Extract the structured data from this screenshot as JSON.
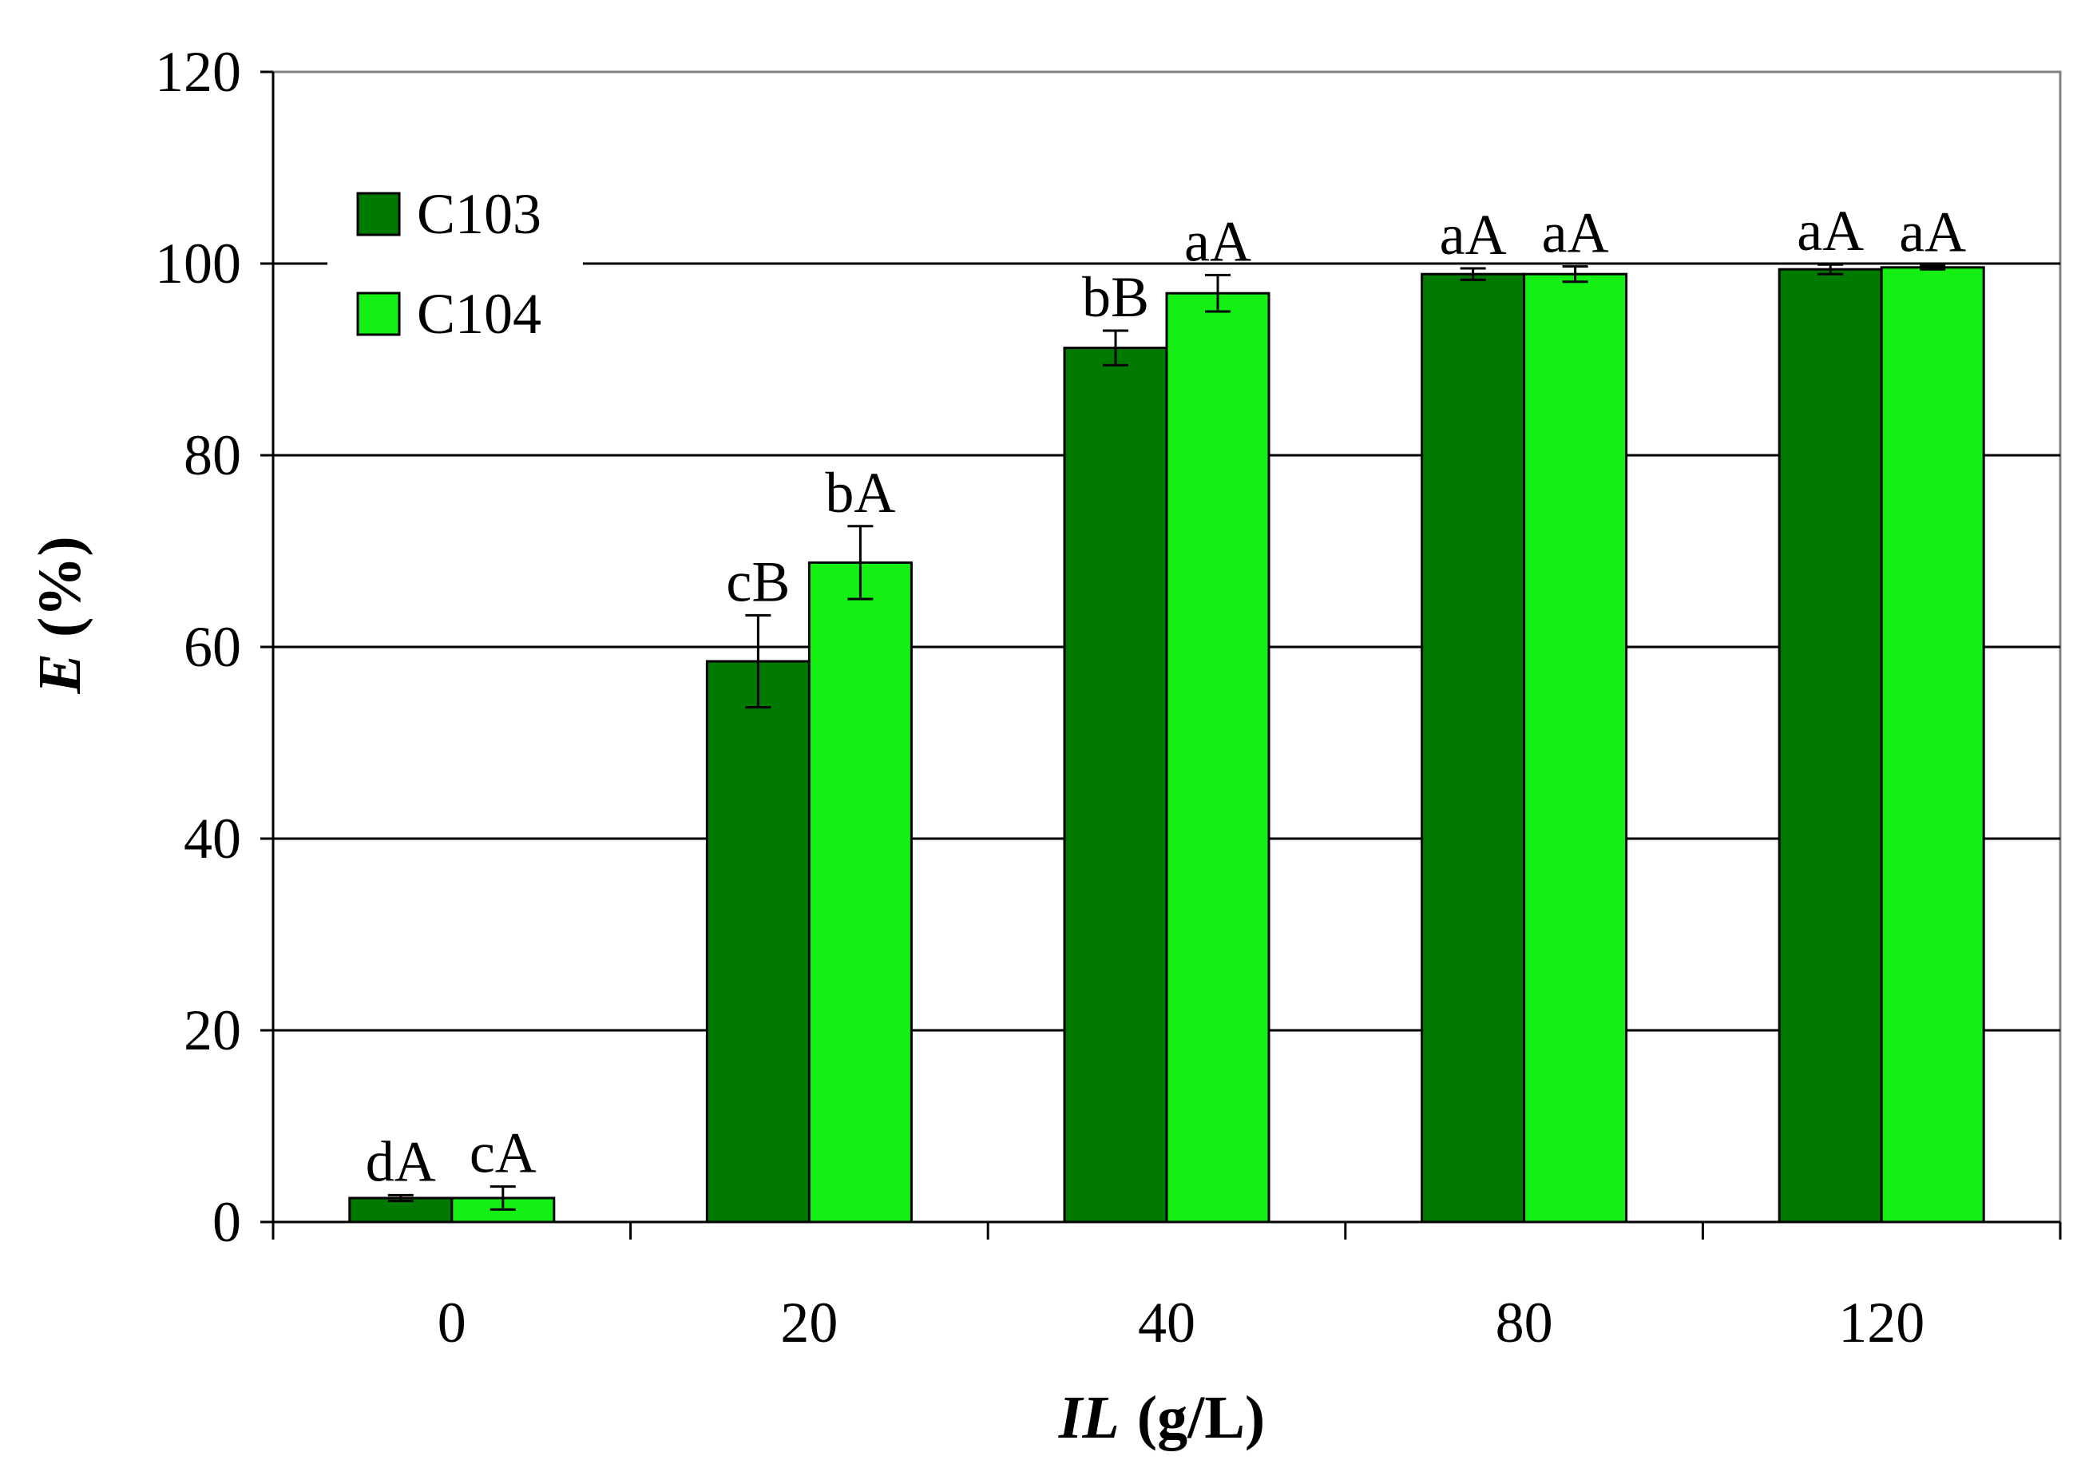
{
  "chart_data": {
    "type": "bar",
    "categories": [
      "0",
      "20",
      "40",
      "80",
      "120"
    ],
    "series": [
      {
        "name": "C103",
        "color": "#007a00",
        "values": [
          2.5,
          58.5,
          91.2,
          98.9,
          99.4
        ],
        "errors": [
          0.3,
          4.8,
          1.8,
          0.6,
          0.5
        ],
        "annotations": [
          "dA",
          "cB",
          "bB",
          "aA",
          "aA"
        ]
      },
      {
        "name": "C104",
        "color": "#14f014",
        "values": [
          2.5,
          68.8,
          96.9,
          98.9,
          99.6
        ],
        "errors": [
          1.2,
          3.8,
          1.9,
          0.8,
          0.2
        ],
        "annotations": [
          "cA",
          "bA",
          "aA",
          "aA",
          "aA"
        ]
      }
    ],
    "ylim": [
      0,
      120
    ],
    "yticks": [
      "0",
      "20",
      "40",
      "60",
      "80",
      "100",
      "120"
    ],
    "ylabel_var": "E",
    "ylabel_unit": "(%)",
    "xlabel_var": "IL",
    "xlabel_unit": "(g/L)",
    "grid": true,
    "legend": "top-left"
  }
}
